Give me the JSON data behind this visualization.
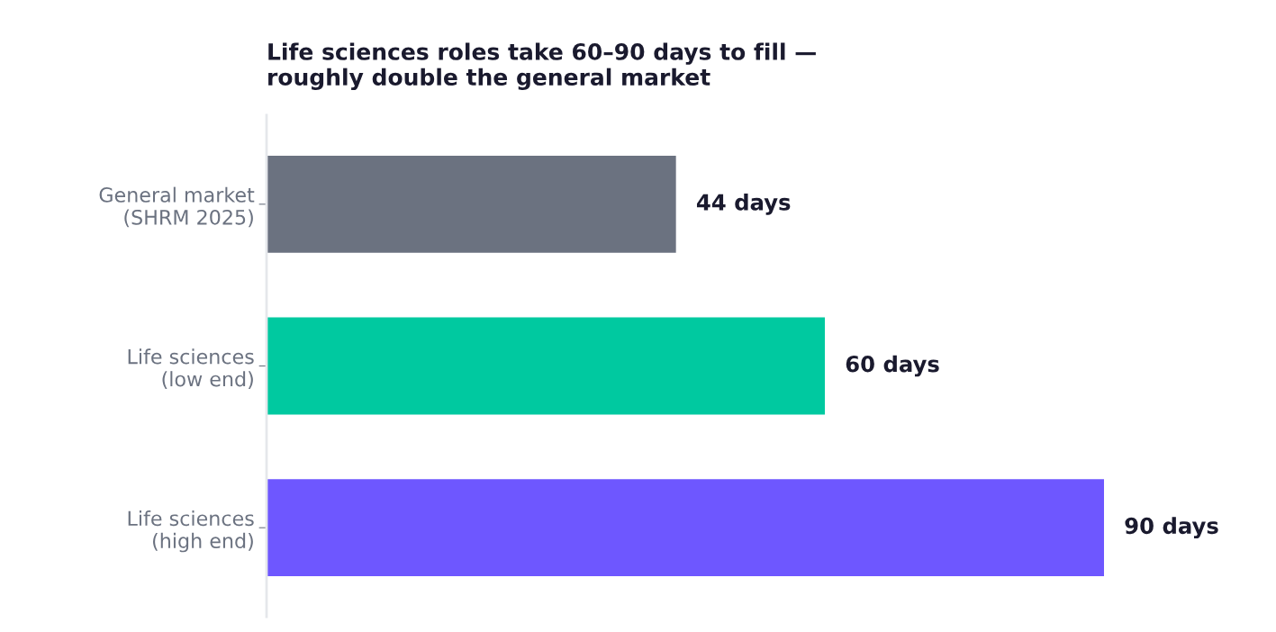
{
  "chart_data": {
    "type": "bar",
    "orientation": "horizontal",
    "title": "Life sciences roles take 60–90 days to fill —\nroughly double the general market",
    "categories": [
      "General market\n(SHRM 2025)",
      "Life sciences\n(low end)",
      "Life sciences\n(high end)"
    ],
    "values": [
      44,
      60,
      90
    ],
    "colors": [
      "#6b7280",
      "#00c9a0",
      "#6e57ff"
    ],
    "value_labels": [
      "44 days",
      "60 days",
      "90 days"
    ],
    "tick_labels": "y",
    "grid": false,
    "legend": false
  }
}
